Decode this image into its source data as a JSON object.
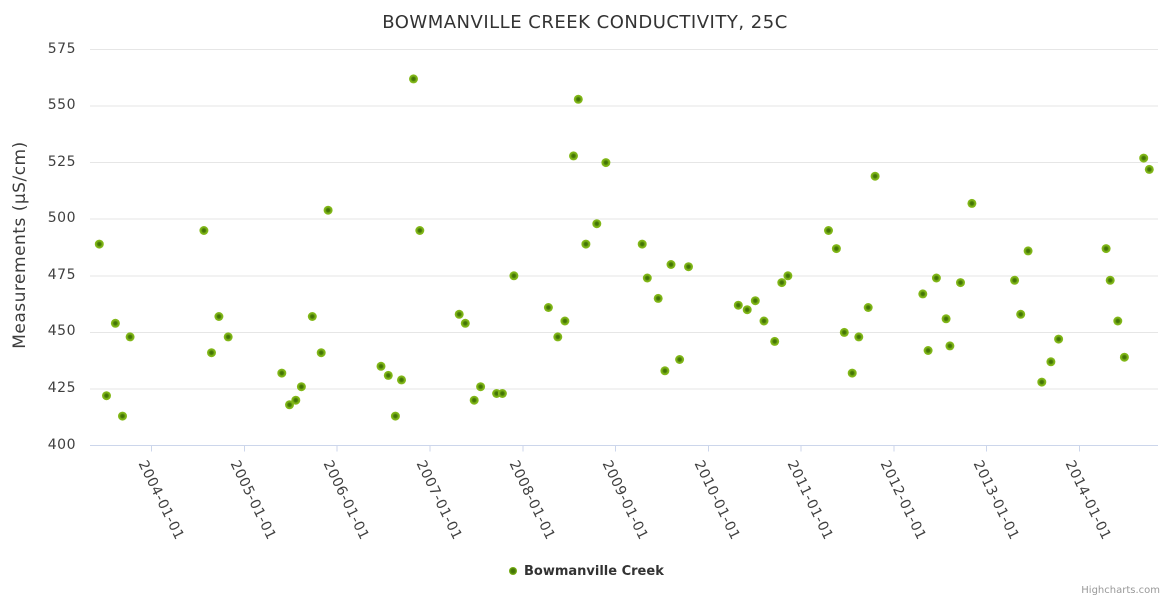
{
  "chart_data": {
    "type": "scatter",
    "title": "BOWMANVILLE CREEK CONDUCTIVITY, 25C",
    "xlabel": "",
    "ylabel": "Measurements (µS/cm)",
    "ylim": [
      400,
      575
    ],
    "y_ticks": [
      575,
      550,
      525,
      500,
      475,
      450,
      425,
      400
    ],
    "x_tick_labels": [
      "2004-01-01",
      "2005-01-01",
      "2006-01-01",
      "2007-01-01",
      "2008-01-01",
      "2009-01-01",
      "2010-01-01",
      "2011-01-01",
      "2012-01-01",
      "2013-01-01",
      "2014-01-01"
    ],
    "grid": "horizontal",
    "legend_position": "bottom-center",
    "credit": "Highcharts.com",
    "colors": {
      "marker_outer": "#8abe1e",
      "marker_core": "#3f6d04",
      "gridline": "#e6e6e6",
      "axis_line": "#ccd6eb",
      "title_text": "#333333",
      "label_text": "#3f3f3f",
      "credit_text": "#999999"
    },
    "series": [
      {
        "name": "Bowmanville Creek",
        "points": [
          [
            "2003-06-09",
            489
          ],
          [
            "2003-07-07",
            422
          ],
          [
            "2003-08-11",
            454
          ],
          [
            "2003-09-08",
            413
          ],
          [
            "2003-10-08",
            448
          ],
          [
            "2004-07-25",
            495
          ],
          [
            "2004-08-24",
            441
          ],
          [
            "2004-09-22",
            457
          ],
          [
            "2004-10-29",
            448
          ],
          [
            "2005-05-28",
            432
          ],
          [
            "2005-06-27",
            418
          ],
          [
            "2005-07-22",
            420
          ],
          [
            "2005-08-13",
            426
          ],
          [
            "2005-09-25",
            457
          ],
          [
            "2005-10-30",
            441
          ],
          [
            "2005-11-26",
            504
          ],
          [
            "2006-06-22",
            435
          ],
          [
            "2006-07-21",
            431
          ],
          [
            "2006-08-18",
            413
          ],
          [
            "2006-09-11",
            429
          ],
          [
            "2006-10-28",
            562
          ],
          [
            "2006-11-22",
            495
          ],
          [
            "2007-04-26",
            458
          ],
          [
            "2007-05-20",
            454
          ],
          [
            "2007-06-24",
            420
          ],
          [
            "2007-07-19",
            426
          ],
          [
            "2007-09-20",
            423
          ],
          [
            "2007-10-13",
            423
          ],
          [
            "2007-11-27",
            475
          ],
          [
            "2008-04-11",
            461
          ],
          [
            "2008-05-18",
            448
          ],
          [
            "2008-06-15",
            455
          ],
          [
            "2008-07-19",
            528
          ],
          [
            "2008-08-07",
            553
          ],
          [
            "2008-09-06",
            489
          ],
          [
            "2008-10-19",
            498
          ],
          [
            "2008-11-24",
            525
          ],
          [
            "2009-04-16",
            489
          ],
          [
            "2009-05-06",
            474
          ],
          [
            "2009-06-18",
            465
          ],
          [
            "2009-07-14",
            433
          ],
          [
            "2009-08-07",
            480
          ],
          [
            "2009-09-10",
            438
          ],
          [
            "2009-10-15",
            479
          ],
          [
            "2010-04-29",
            462
          ],
          [
            "2010-06-03",
            460
          ],
          [
            "2010-07-05",
            464
          ],
          [
            "2010-08-08",
            455
          ],
          [
            "2010-09-19",
            446
          ],
          [
            "2010-10-17",
            472
          ],
          [
            "2010-11-10",
            475
          ],
          [
            "2011-04-19",
            495
          ],
          [
            "2011-05-20",
            487
          ],
          [
            "2011-06-20",
            450
          ],
          [
            "2011-07-21",
            432
          ],
          [
            "2011-08-16",
            448
          ],
          [
            "2011-09-22",
            461
          ],
          [
            "2011-10-19",
            519
          ],
          [
            "2012-04-24",
            467
          ],
          [
            "2012-05-15",
            442
          ],
          [
            "2012-06-17",
            474
          ],
          [
            "2012-07-25",
            456
          ],
          [
            "2012-08-09",
            444
          ],
          [
            "2012-09-20",
            472
          ],
          [
            "2012-11-04",
            507
          ],
          [
            "2013-04-21",
            473
          ],
          [
            "2013-05-15",
            458
          ],
          [
            "2013-06-13",
            486
          ],
          [
            "2013-08-06",
            428
          ],
          [
            "2013-09-11",
            437
          ],
          [
            "2013-10-11",
            447
          ],
          [
            "2014-04-16",
            487
          ],
          [
            "2014-05-02",
            473
          ],
          [
            "2014-06-01",
            455
          ],
          [
            "2014-06-27",
            439
          ],
          [
            "2014-09-11",
            527
          ],
          [
            "2014-10-03",
            522
          ]
        ]
      }
    ]
  }
}
